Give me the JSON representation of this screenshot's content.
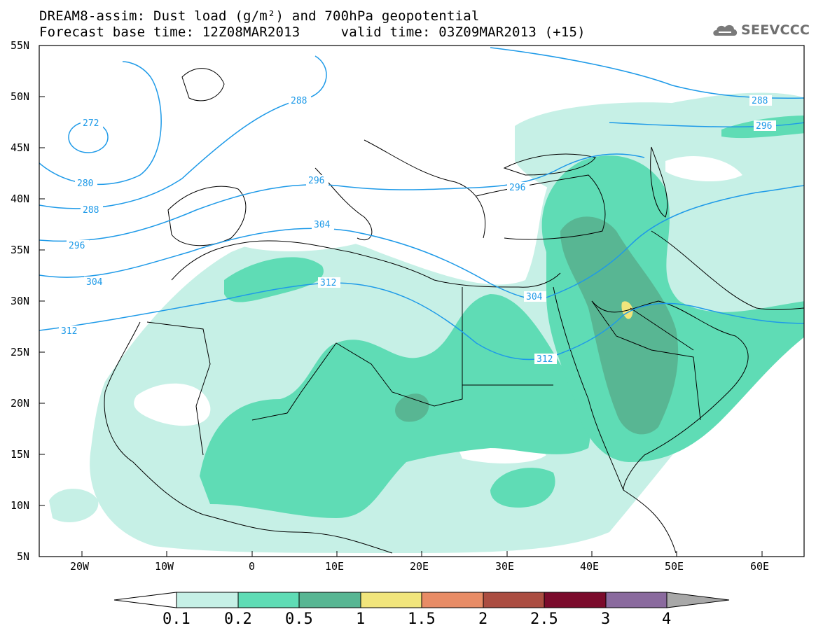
{
  "header": {
    "title_line1": "DREAM8-assim: Dust load (g/m²) and 700hPa geopotential",
    "title_line2": "Forecast base time: 12Z08MAR2013     valid time: 03Z09MAR2013 (+15)",
    "logo_text": "SEEVCCC"
  },
  "axes": {
    "lat_labels": [
      "55N",
      "50N",
      "45N",
      "40N",
      "35N",
      "30N",
      "25N",
      "20N",
      "15N",
      "10N",
      "5N"
    ],
    "lon_labels": [
      "20W",
      "10W",
      "0",
      "10E",
      "20E",
      "30E",
      "40E",
      "50E",
      "60E"
    ]
  },
  "contours": {
    "labels": [
      "272",
      "280",
      "288",
      "296",
      "304",
      "312",
      "288",
      "296",
      "304",
      "312",
      "296",
      "304",
      "312",
      "288",
      "296"
    ]
  },
  "colorbar": {
    "labels": [
      "0.1",
      "0.2",
      "0.5",
      "1",
      "1.5",
      "2",
      "2.5",
      "3",
      "4"
    ],
    "colors": {
      "under": "#ffffff",
      "c1": "#c6f0e6",
      "c2": "#5fdcb5",
      "c3": "#58b693",
      "c4": "#f1e57c",
      "c5": "#e88c66",
      "c6": "#ab4d41",
      "c7": "#7b0b2c",
      "c8": "#8a6a9e",
      "over": "#a8a8a8"
    }
  },
  "styles": {
    "contour_color": "#1e9ae8",
    "dust_light": "#c6f0e6",
    "dust_mid": "#5fdcb5",
    "dust_dark": "#58b693",
    "dust_peak": "#f1e57c"
  }
}
